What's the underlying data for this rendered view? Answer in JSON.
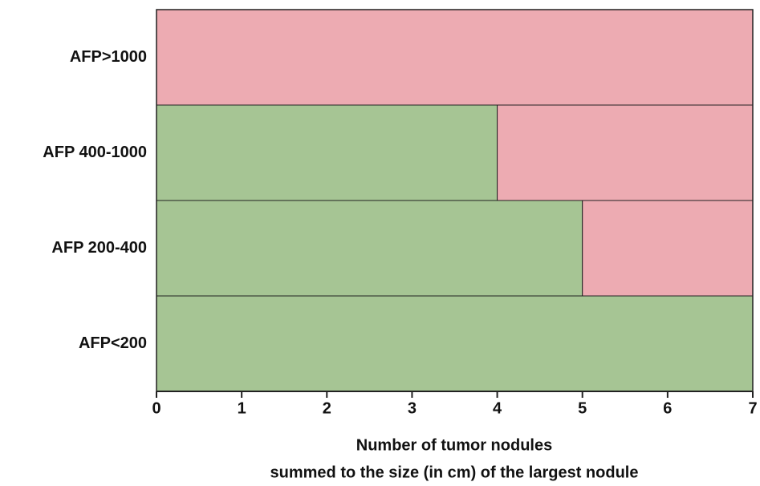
{
  "chart_data": {
    "type": "bar",
    "orientation": "horizontal",
    "stacked": true,
    "categories": [
      "AFP>1000",
      "AFP 400-1000",
      "AFP 200-400",
      "AFP<200"
    ],
    "series": [
      {
        "color": "#a6c594",
        "values": [
          0,
          4,
          5,
          7
        ]
      },
      {
        "color": "#edabb2",
        "values": [
          7,
          3,
          2,
          0
        ]
      }
    ],
    "xlim": [
      0,
      7
    ],
    "xticks": [
      0,
      1,
      2,
      3,
      4,
      5,
      6,
      7
    ],
    "xlabel": [
      "Number of tumor nodules",
      "summed to the size (in cm) of the largest nodule"
    ]
  }
}
